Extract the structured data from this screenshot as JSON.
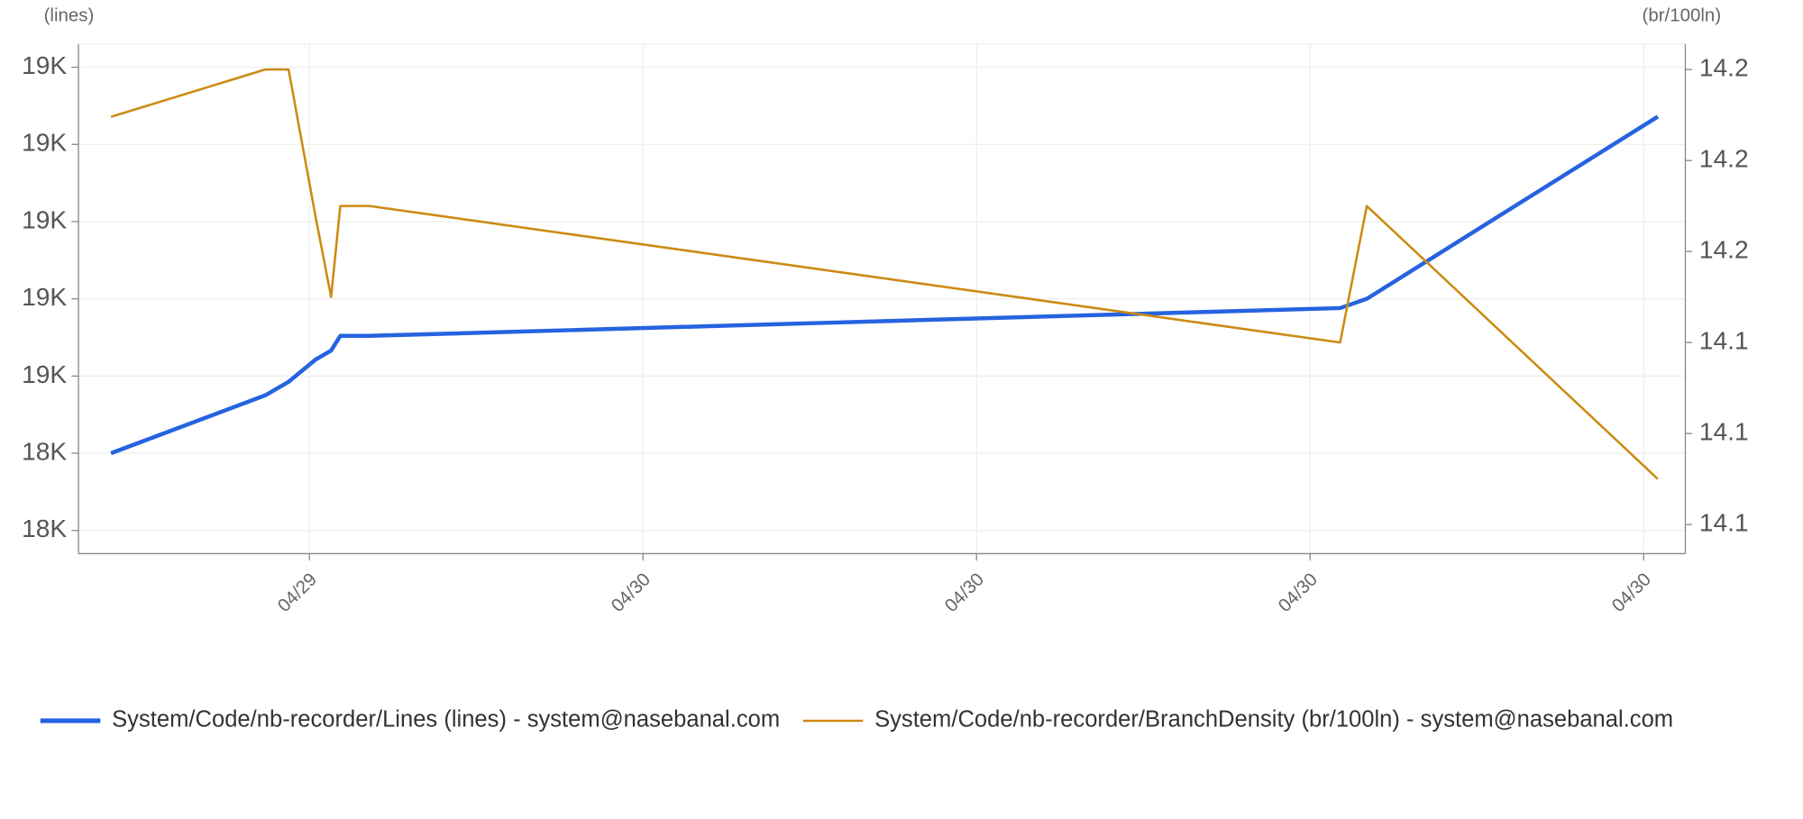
{
  "chart_data": {
    "type": "line",
    "y_label": "(lines)",
    "y2_label": "(br/100ln)",
    "x": [
      17.62,
      19.47,
      19.75,
      20.07,
      20.26,
      20.37,
      20.72,
      32.36,
      32.68,
      36.17
    ],
    "xlim": [
      17.23,
      36.5
    ],
    "xticks": [
      {
        "value": 20,
        "label": "04/29"
      },
      {
        "value": 24,
        "label": "04/30"
      },
      {
        "value": 28,
        "label": "04/30"
      },
      {
        "value": 32,
        "label": "04/30"
      },
      {
        "value": 36,
        "label": "04/30"
      }
    ],
    "ylim": [
      18270,
      18930
    ],
    "yticks": [
      {
        "value": 18300,
        "label": "18K"
      },
      {
        "value": 18400,
        "label": "18K"
      },
      {
        "value": 18500,
        "label": "19K"
      },
      {
        "value": 18600,
        "label": "19K"
      },
      {
        "value": 18700,
        "label": "19K"
      },
      {
        "value": 18800,
        "label": "19K"
      },
      {
        "value": 18900,
        "label": "19K"
      }
    ],
    "y2lim": [
      14.067,
      14.207
    ],
    "y2ticks": [
      {
        "value": 14.075,
        "label": "14.1"
      },
      {
        "value": 14.1,
        "label": "14.1"
      },
      {
        "value": 14.125,
        "label": "14.1"
      },
      {
        "value": 14.15,
        "label": "14.2"
      },
      {
        "value": 14.175,
        "label": "14.2"
      },
      {
        "value": 14.2,
        "label": "14.2"
      }
    ],
    "grid": true,
    "series": [
      {
        "name": "System/Code/nb-recorder/Lines (lines) - system@nasebanal.com",
        "color": "#2563e0",
        "values": [
          18400,
          18475,
          18492.5,
          18521,
          18533,
          18552,
          18552,
          18588,
          18600,
          18836
        ]
      },
      {
        "name": "System/Code/nb-recorder/BranchDensity (br/100ln) - system@nasebanal.com",
        "color": "#cc8a12",
        "axis": "y2",
        "values": [
          14.187,
          14.2,
          14.2,
          14.16,
          14.1375,
          14.1625,
          14.1625,
          14.125,
          14.1625,
          14.0875
        ]
      }
    ]
  }
}
